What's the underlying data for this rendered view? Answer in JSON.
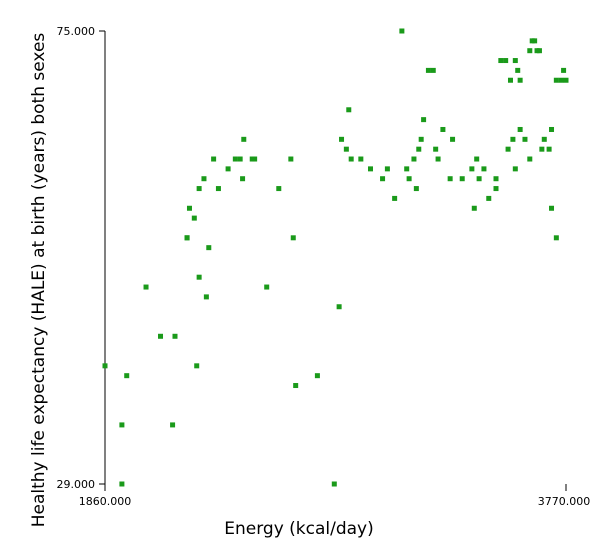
{
  "chart_data": {
    "type": "scatter",
    "title": "",
    "xlabel": "Energy (kcal/day)",
    "ylabel": "Healthy life expectancy (HALE) at birth (years) both sexes",
    "xlim": [
      1860,
      3770
    ],
    "ylim": [
      29,
      75
    ],
    "x_tick_labels": [
      "1860.000",
      "3770.000"
    ],
    "y_tick_labels": [
      "29.000",
      "75.000"
    ],
    "grid": false,
    "legend": "none",
    "marker_color": "#1a9a1a",
    "points": [
      [
        1860,
        41.0
      ],
      [
        1930,
        35.0
      ],
      [
        1930,
        29.0
      ],
      [
        1950,
        40.0
      ],
      [
        2030,
        49.0
      ],
      [
        2090,
        44.0
      ],
      [
        2140,
        35.0
      ],
      [
        2150,
        44.0
      ],
      [
        2200,
        54.0
      ],
      [
        2200,
        54.0
      ],
      [
        2210,
        57.0
      ],
      [
        2230,
        56.0
      ],
      [
        2240,
        41.0
      ],
      [
        2250,
        50.0
      ],
      [
        2250,
        59.0
      ],
      [
        2270,
        60.0
      ],
      [
        2280,
        48.0
      ],
      [
        2290,
        53.0
      ],
      [
        2310,
        62.0
      ],
      [
        2330,
        59.0
      ],
      [
        2370,
        61.0
      ],
      [
        2400,
        62.0
      ],
      [
        2420,
        62.0
      ],
      [
        2430,
        60.0
      ],
      [
        2435,
        64.0
      ],
      [
        2470,
        62.0
      ],
      [
        2480,
        62.0
      ],
      [
        2530,
        49.0
      ],
      [
        2580,
        59.0
      ],
      [
        2630,
        62.0
      ],
      [
        2640,
        54.0
      ],
      [
        2650,
        39.0
      ],
      [
        2740,
        40.0
      ],
      [
        2810,
        29.0
      ],
      [
        2830,
        47.0
      ],
      [
        2840,
        64.0
      ],
      [
        2860,
        63.0
      ],
      [
        2870,
        67.0
      ],
      [
        2880,
        62.0
      ],
      [
        2920,
        62.0
      ],
      [
        2960,
        61.0
      ],
      [
        3010,
        60.0
      ],
      [
        3030,
        61.0
      ],
      [
        3060,
        58.0
      ],
      [
        3090,
        75.0
      ],
      [
        3110,
        61.0
      ],
      [
        3120,
        60.0
      ],
      [
        3140,
        62.0
      ],
      [
        3150,
        59.0
      ],
      [
        3160,
        63.0
      ],
      [
        3170,
        64.0
      ],
      [
        3180,
        66.0
      ],
      [
        3200,
        71.0
      ],
      [
        3220,
        71.0
      ],
      [
        3230,
        63.0
      ],
      [
        3240,
        62.0
      ],
      [
        3260,
        65.0
      ],
      [
        3290,
        60.0
      ],
      [
        3300,
        64.0
      ],
      [
        3340,
        60.0
      ],
      [
        3380,
        61.0
      ],
      [
        3390,
        57.0
      ],
      [
        3400,
        62.0
      ],
      [
        3410,
        60.0
      ],
      [
        3430,
        61.0
      ],
      [
        3450,
        58.0
      ],
      [
        3480,
        59.0
      ],
      [
        3480,
        60.0
      ],
      [
        3500,
        72.0
      ],
      [
        3520,
        72.0
      ],
      [
        3530,
        63.0
      ],
      [
        3540,
        70.0
      ],
      [
        3550,
        64.0
      ],
      [
        3560,
        72.0
      ],
      [
        3570,
        71.0
      ],
      [
        3580,
        70.0
      ],
      [
        3600,
        64.0
      ],
      [
        3620,
        73.0
      ],
      [
        3630,
        74.0
      ],
      [
        3640,
        74.0
      ],
      [
        3650,
        73.0
      ],
      [
        3660,
        73.0
      ],
      [
        3670,
        63.0
      ],
      [
        3680,
        64.0
      ],
      [
        3710,
        65.0
      ],
      [
        3730,
        70.0
      ],
      [
        3750,
        70.0
      ],
      [
        3760,
        71.0
      ],
      [
        3770,
        70.0
      ],
      [
        3560,
        61.0
      ],
      [
        3580,
        65.0
      ],
      [
        3620,
        62.0
      ],
      [
        3700,
        63.0
      ],
      [
        3710,
        57.0
      ],
      [
        3730,
        54.0
      ]
    ]
  }
}
